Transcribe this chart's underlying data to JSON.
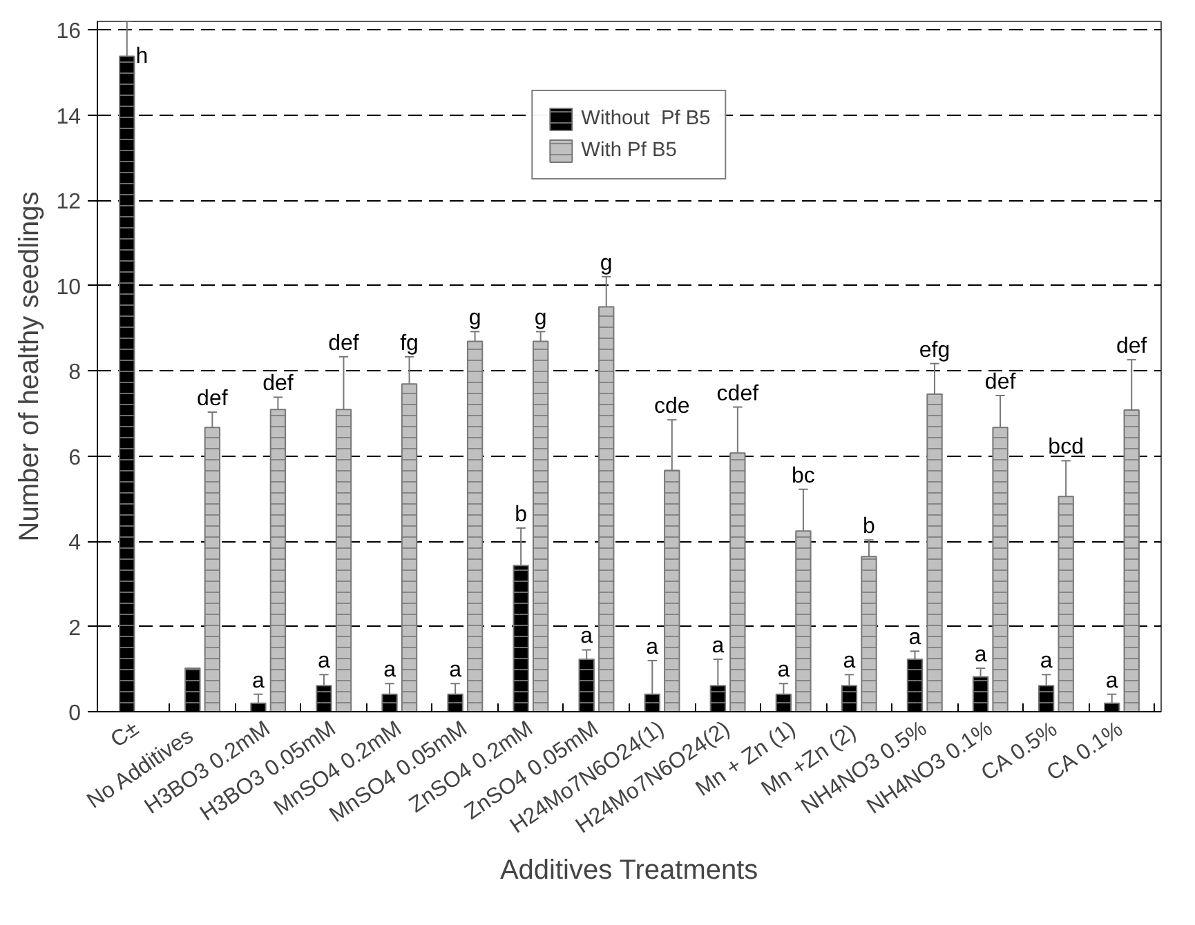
{
  "chart_data": {
    "type": "bar",
    "xlabel": "Additives Treatments",
    "ylabel": "Number of healthy seedlings",
    "categories": [
      "C±",
      "No   Additives",
      "H3BO3 0.2mM",
      "H3BO3 0.05mM",
      "MnSO4 0.2mM",
      "MnSO4 0.05mM",
      "ZnSO4 0.2mM",
      "ZnSO4 0.05mM",
      "H24Mo7N6O24(1)",
      "H24Mo7N6O24(2)",
      "Mn + Zn (1)",
      "Mn +Zn  (2)",
      "NH4NO3 0.5%",
      "NH4NO3 0.1%",
      "CA 0.5%",
      "CA 0.1%"
    ],
    "series": [
      {
        "name": "Without  Pf B5",
        "color": "#000000",
        "values": [
          15.38,
          1.02,
          0.2,
          0.61,
          0.41,
          0.41,
          3.43,
          1.23,
          0.41,
          0.61,
          0.41,
          0.61,
          1.23,
          0.82,
          0.61,
          0.2
        ],
        "errors": [
          [
            15.38,
            16.2
          ],
          null,
          [
            0.2,
            0.41
          ],
          [
            0.61,
            0.87
          ],
          [
            0.41,
            0.66
          ],
          [
            0.41,
            0.66
          ],
          [
            3.43,
            4.31
          ],
          [
            1.23,
            1.45
          ],
          [
            0.41,
            1.2
          ],
          [
            0.61,
            1.23
          ],
          [
            0.41,
            0.66
          ],
          [
            0.61,
            0.87
          ],
          [
            1.23,
            1.42
          ],
          [
            0.82,
            1.02
          ],
          [
            0.61,
            0.87
          ],
          [
            0.2,
            0.41
          ]
        ]
      },
      {
        "name": "With Pf B5",
        "color": "#c0c0c0",
        "values": [
          null,
          6.67,
          7.09,
          7.09,
          7.69,
          8.69,
          8.69,
          9.5,
          5.66,
          6.07,
          4.24,
          3.64,
          7.45,
          6.67,
          5.05,
          7.08
        ],
        "errors": [
          null,
          [
            6.67,
            7.03
          ],
          [
            7.09,
            7.38
          ],
          [
            7.09,
            8.33
          ],
          [
            7.69,
            8.33
          ],
          [
            8.69,
            8.92
          ],
          [
            8.69,
            8.92
          ],
          [
            9.5,
            10.21
          ],
          [
            5.66,
            6.85
          ],
          [
            6.07,
            7.15
          ],
          [
            4.24,
            5.22
          ],
          [
            3.64,
            4.03
          ],
          [
            7.45,
            8.17
          ],
          [
            6.67,
            7.42
          ],
          [
            5.05,
            5.89
          ],
          [
            7.08,
            8.26
          ]
        ]
      }
    ],
    "ylim": [
      0,
      16.2
    ],
    "yticks": [
      0,
      2,
      4,
      6,
      8,
      10,
      12,
      14,
      16
    ],
    "grid": "y",
    "legend": "top",
    "annotations": [
      {
        "text": "h",
        "x": "C±",
        "y": 15.38
      },
      {
        "text": "def",
        "x": "No   Additives",
        "y": 7.03
      },
      {
        "text": "a",
        "x": "H3BO3 0.2mM",
        "y": 0.41
      },
      {
        "text": "def",
        "x": "H3BO3 0.2mM",
        "y": 7.38
      },
      {
        "text": "a",
        "x": "H3BO3 0.05mM",
        "y": 0.87
      },
      {
        "text": "def",
        "x": "H3BO3 0.05mM",
        "y": 8.33
      },
      {
        "text": "a",
        "x": "MnSO4 0.2mM",
        "y": 0.66
      },
      {
        "text": "fg",
        "x": "MnSO4 0.2mM",
        "y": 8.33
      },
      {
        "text": "a",
        "x": "MnSO4 0.05mM",
        "y": 0.66
      },
      {
        "text": "g",
        "x": "MnSO4 0.05mM",
        "y": 8.92
      },
      {
        "text": "b",
        "x": "ZnSO4 0.2mM",
        "y": 4.31
      },
      {
        "text": "g",
        "x": "ZnSO4 0.2mM",
        "y": 8.92
      },
      {
        "text": "a",
        "x": "ZnSO4 0.05mM",
        "y": 1.45
      },
      {
        "text": "g",
        "x": "ZnSO4 0.05mM",
        "y": 10.21
      },
      {
        "text": "a",
        "x": "H24Mo7N6O24(1)",
        "y": 1.2
      },
      {
        "text": "cde",
        "x": "H24Mo7N6O24(1)",
        "y": 6.85
      },
      {
        "text": "a",
        "x": "H24Mo7N6O24(2)",
        "y": 1.23
      },
      {
        "text": "cdef",
        "x": "H24Mo7N6O24(2)",
        "y": 7.15
      },
      {
        "text": "a",
        "x": "Mn + Zn (1)",
        "y": 0.66
      },
      {
        "text": "bc",
        "x": "Mn + Zn (1)",
        "y": 5.22
      },
      {
        "text": "a",
        "x": "Mn +Zn  (2)",
        "y": 0.87
      },
      {
        "text": "b",
        "x": "Mn +Zn  (2)",
        "y": 4.03
      },
      {
        "text": "a",
        "x": "NH4NO3 0.5%",
        "y": 1.42
      },
      {
        "text": "efg",
        "x": "NH4NO3 0.5%",
        "y": 8.17
      },
      {
        "text": "a",
        "x": "NH4NO3 0.1%",
        "y": 1.02
      },
      {
        "text": "def",
        "x": "NH4NO3 0.1%",
        "y": 7.42
      },
      {
        "text": "a",
        "x": "CA 0.5%",
        "y": 0.87
      },
      {
        "text": "bcd",
        "x": "CA 0.5%",
        "y": 5.89
      },
      {
        "text": "a",
        "x": "CA 0.1%",
        "y": 0.41
      },
      {
        "text": "def",
        "x": "CA 0.1%",
        "y": 8.26
      }
    ]
  }
}
